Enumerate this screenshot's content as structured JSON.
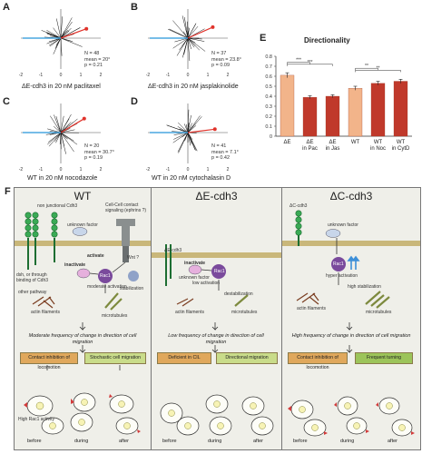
{
  "panels": {
    "A": {
      "letter": "A",
      "caption": "ΔE-cdh3 in 20 nM paclitaxel",
      "stats": [
        "N = 48",
        "mean = 20°",
        "p = 0.21"
      ]
    },
    "B": {
      "letter": "B",
      "caption": "ΔE-cdh3 in 20 nM jasplakinolide",
      "stats": [
        "N = 37",
        "mean = 23.8°",
        "p = 0.09"
      ]
    },
    "C": {
      "letter": "C",
      "caption": "WT in 20 nM nocodazole",
      "stats": [
        "N = 20",
        "mean = 30.7°",
        "p = 0.19"
      ]
    },
    "D": {
      "letter": "D",
      "caption": "WT in 20 nM cytochalasin D",
      "stats": [
        "N = 41",
        "mean = 7.1°",
        "p = 0.42"
      ]
    }
  },
  "axis_ticks": [
    "-2",
    "-1",
    "0",
    "1",
    "2"
  ],
  "chart_data": {
    "type": "bar",
    "letter": "E",
    "title": "Directionality",
    "categories": [
      "ΔE",
      "ΔE in Pac",
      "ΔE in Jas",
      "WT",
      "WT in Noc",
      "WT in CytD"
    ],
    "category_lines": [
      [
        "ΔE",
        ""
      ],
      [
        "ΔE",
        "in Pac"
      ],
      [
        "ΔE",
        "in Jas"
      ],
      [
        "WT",
        ""
      ],
      [
        "WT",
        "in Noc"
      ],
      [
        "WT",
        "in CytD"
      ]
    ],
    "values": [
      0.61,
      0.39,
      0.4,
      0.48,
      0.53,
      0.55
    ],
    "errors": [
      0.025,
      0.015,
      0.015,
      0.02,
      0.02,
      0.02
    ],
    "ylim": [
      0,
      0.8
    ],
    "yticks": [
      "0",
      "0.1",
      "0.2",
      "0.3",
      "0.4",
      "0.5",
      "0.6",
      "0.7",
      "0.8"
    ],
    "significance": [
      "***",
      "***",
      "**",
      "**"
    ],
    "colors": {
      "light": "#f2b48a",
      "dark": "#c0392b"
    }
  },
  "figF": {
    "letter": "F",
    "wt": {
      "title": "WT",
      "labels": {
        "non_junctional": "non junctional Cdh3",
        "cell_cell": "Cell-Cell contact signaling (ephrins ?)",
        "unknown": "unknown factor",
        "wnt": "Wnt ?",
        "inactivate": "inactivate",
        "activate": "activate",
        "rac1": "Rac1",
        "moderate_act": "moderate activation",
        "stabilization": "stabilization",
        "dsh": "dsh, or through binding of Cdh3",
        "other": "other pathway",
        "actin": "actin filaments",
        "micro": "microtubules"
      },
      "freq": "Moderate frequency of change in direction of cell migration",
      "badge_left": "Contact inhibition of locomotion",
      "badge_right": "Stochastic cell migration",
      "rac_activity": "High Rac1 activity",
      "times": [
        "before",
        "during",
        "after"
      ]
    },
    "de": {
      "title": "ΔE-cdh3",
      "labels": {
        "construct": "ΔE-cdh3",
        "inactivate": "inactivate",
        "unknown": "unknown factor",
        "low_act": "low activation",
        "rac1": "Rac1",
        "destab": "destabilization",
        "actin": "actin filaments",
        "micro": "microtubules"
      },
      "freq": "Low frequency of change in direction of cell migration",
      "badge_left": "Deficient in CIL",
      "badge_right": "Directional migration",
      "times": [
        "before",
        "during",
        "after"
      ]
    },
    "dc": {
      "title": "ΔC-cdh3",
      "labels": {
        "construct": "ΔC-cdh3",
        "unknown": "unknown factor",
        "hyper": "hyper activation",
        "rac1": "Rac1",
        "high_stab": "high stabilization",
        "actin": "actin filaments",
        "micro": "microtubules"
      },
      "freq": "High frequency of change in direction of cell migration",
      "badge_left": "Contact inhibition of locomotion",
      "badge_right": "Frequent turning",
      "times": [
        "before",
        "during",
        "after"
      ]
    }
  }
}
